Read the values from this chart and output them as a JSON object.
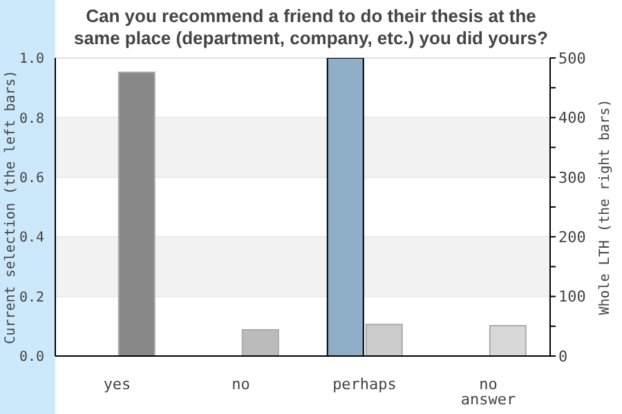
{
  "chart_data": {
    "type": "bar",
    "title": "Can you recommend a friend to do their thesis at the same place (department, company, etc.) you did yours?",
    "ylabel": "Current selection (the left bars)",
    "y2label": "Whole LTH (the right bars)",
    "categories": [
      "yes",
      "no",
      "perhaps",
      "no answer"
    ],
    "series": [
      {
        "axis": "y",
        "values": [
          0,
          0,
          1,
          0
        ],
        "colors": [
          "#8fafc9",
          "#8fafc9",
          "#8fafc9",
          "#8fafc9"
        ]
      },
      {
        "axis": "y2",
        "values": [
          476,
          44,
          53,
          51
        ],
        "colors": [
          "#888888",
          "#bbbbbb",
          "#cccccc",
          "#d8d8d8"
        ]
      }
    ],
    "ylim": [
      0,
      1
    ],
    "yticks": [
      {
        "value": 0,
        "label": "0.0"
      },
      0.2,
      0.4,
      0.6,
      0.8,
      {
        "value": 1,
        "label": "1.0"
      }
    ],
    "y2lim": [
      0,
      500
    ],
    "y2ticks": [
      0,
      {
        "value": 50,
        "label": null
      },
      100,
      {
        "value": 150,
        "label": null
      },
      200,
      {
        "value": 250,
        "label": null
      },
      300,
      {
        "value": 350,
        "label": null
      },
      400,
      {
        "value": 450,
        "label": null
      },
      500
    ],
    "grid": "y",
    "bands": [
      {
        "axis": "y",
        "from": 0.2,
        "to": 0.4,
        "color": "#f2f2f2"
      },
      {
        "axis": "y",
        "from": 0.6,
        "to": 0.8,
        "color": "#f2f2f2"
      }
    ],
    "legend": false
  }
}
